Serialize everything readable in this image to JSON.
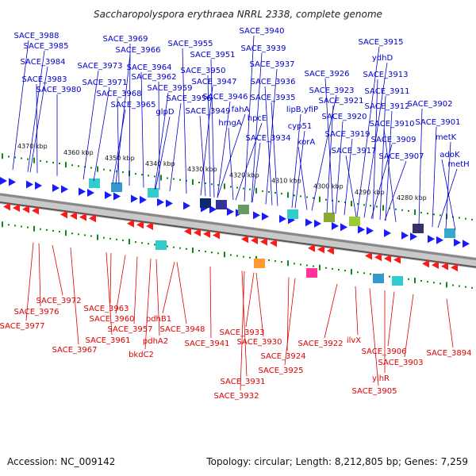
{
  "title": "Saccharopolyspora erythraea NRRL 2338, complete genome",
  "footer": {
    "accession": "Accession: NC_009142",
    "summary": "Topology: circular; Length: 8,212,805 bp; Genes: 7,259"
  },
  "scale_ticks": [
    "4370 kbp",
    "4360 kbp",
    "4350 kbp",
    "4340 kbp",
    "4330 kbp",
    "4320 kbp",
    "4310 kbp",
    "4300 kbp",
    "4290 kbp",
    "4280 kbp"
  ],
  "forward_labels": [
    "SACE_3988",
    "SACE_3985",
    "SACE_3984",
    "SACE_3983",
    "SACE_3980",
    "SACE_3969",
    "SACE_3966",
    "SACE_3973",
    "SACE_3971",
    "SACE_3964",
    "SACE_3968",
    "SACE_3962",
    "SACE_3965",
    "SACE_3959",
    "glpD",
    "SACE_3955",
    "SACE_3951",
    "SACE_3950",
    "SACE_3956",
    "SACE_3947",
    "SACE_3946",
    "SACE_3949",
    "hmgA",
    "fahA",
    "SACE_3940",
    "SACE_3939",
    "SACE_3937",
    "SACE_3936",
    "SACE_3935",
    "hpcE",
    "SACE_3934",
    "lipB,yfiP",
    "cyp51",
    "korA",
    "SACE_3926",
    "SACE_3923",
    "SACE_3921",
    "SACE_3920",
    "SACE_3919",
    "SACE_3917",
    "SACE_3915",
    "ydhD",
    "SACE_3913",
    "SACE_3911",
    "SACE_3912",
    "SACE_3910",
    "SACE_3909",
    "SACE_3907",
    "SACE_3902",
    "SACE_3901",
    "metK",
    "adoK",
    "metH"
  ],
  "reverse_labels": [
    "SACE_3972",
    "SACE_3976",
    "SACE_3977",
    "SACE_3967",
    "SACE_3963",
    "SACE_3960",
    "SACE_3961",
    "SACE_3957",
    "pdhB1",
    "pdhA2",
    "bkdC2",
    "SACE_3948",
    "SACE_3941",
    "SACE_3933",
    "SACE_3930",
    "SACE_3924",
    "SACE_3925",
    "SACE_3931",
    "SACE_3932",
    "SACE_3922",
    "ilvX",
    "SACE_3906",
    "SACE_3905",
    "yihR",
    "SACE_3903",
    "SACE_3894"
  ],
  "colors": {
    "forward": "#0000cc",
    "reverse": "#dd0000",
    "forward_arrow": "#1a1aff",
    "reverse_arrow": "#ff1a1a",
    "tick_green": "#118811",
    "backbone": "#999999"
  }
}
